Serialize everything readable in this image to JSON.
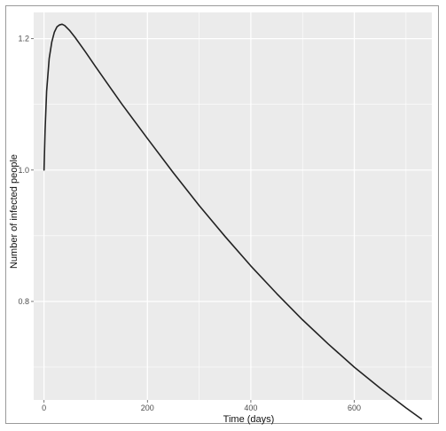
{
  "chart_data": {
    "type": "line",
    "title": "",
    "xlabel": "Time (days)",
    "ylabel": "Number of infected people",
    "xlim": [
      -20,
      750
    ],
    "ylim": [
      0.65,
      1.24
    ],
    "x_major_ticks": [
      0,
      200,
      400,
      600
    ],
    "x_minor_ticks": [
      100,
      300,
      500,
      700
    ],
    "y_major_ticks": [
      0.8,
      1.0,
      1.2
    ],
    "y_minor_ticks": [
      0.7,
      0.9,
      1.1
    ],
    "x_tick_labels": [
      "0",
      "200",
      "400",
      "600"
    ],
    "y_tick_labels": [
      "0.8",
      "1.0",
      "1.2"
    ],
    "grid": true,
    "panel_background": "#ebebeb",
    "grid_color": "#ffffff",
    "line_color": "#222222",
    "series": [
      {
        "x": [
          0,
          2,
          5,
          10,
          15,
          20,
          25,
          30,
          35,
          40,
          50,
          60,
          80,
          100,
          150,
          200,
          250,
          300,
          350,
          400,
          450,
          500,
          550,
          600,
          650,
          700,
          730
        ],
        "values": [
          1.0,
          1.06,
          1.12,
          1.17,
          1.195,
          1.21,
          1.218,
          1.221,
          1.222,
          1.22,
          1.212,
          1.202,
          1.18,
          1.157,
          1.101,
          1.048,
          0.996,
          0.946,
          0.899,
          0.854,
          0.812,
          0.772,
          0.735,
          0.7,
          0.668,
          0.638,
          0.621
        ]
      }
    ]
  }
}
